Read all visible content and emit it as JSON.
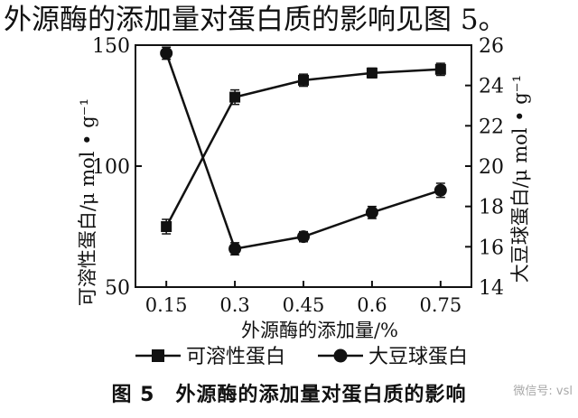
{
  "header": {
    "text": "外源酶的添加量对蛋白质的影响见图 5。"
  },
  "figure": {
    "caption": "图 5　外源酶的添加量对蛋白质的影响",
    "watermark": "微信号: vsl"
  },
  "chart_data": {
    "type": "line",
    "xlabel": "外源酶的添加量/%",
    "categories": [
      "0.15",
      "0.3",
      "0.45",
      "0.6",
      "0.75"
    ],
    "y_left": {
      "label": "可溶性蛋白/μ mol • g⁻¹",
      "ylim": [
        50,
        150
      ],
      "ticks": [
        50,
        100,
        150
      ]
    },
    "y_right": {
      "label": "大豆球蛋白/μ mol • g⁻¹",
      "ylim": [
        14,
        26
      ],
      "ticks": [
        14,
        16,
        18,
        20,
        22,
        24,
        26
      ]
    },
    "series": [
      {
        "name": "可溶性蛋白",
        "axis": "left",
        "marker": "square",
        "values": [
          75,
          128.5,
          135.5,
          138.5,
          140
        ],
        "errors": [
          3,
          3,
          2.5,
          2,
          2.5
        ]
      },
      {
        "name": "大豆球蛋白",
        "axis": "right",
        "marker": "circle",
        "values": [
          25.6,
          15.9,
          16.5,
          17.7,
          18.8
        ],
        "errors": [
          0.3,
          0.3,
          0.25,
          0.3,
          0.35
        ]
      }
    ],
    "legend": {
      "position": "bottom"
    },
    "grid": false
  }
}
